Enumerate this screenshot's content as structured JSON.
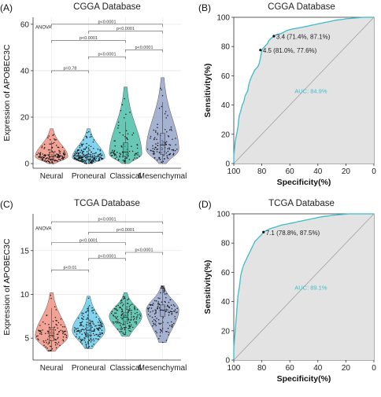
{
  "chart_data": [
    {
      "panel": "(A)",
      "type": "violin",
      "title": "CGGA Database",
      "ylabel": "Expression of APOBEC3C",
      "xlabel": "",
      "categories": [
        "Neural",
        "Proneural",
        "Classical",
        "Mesenchymal"
      ],
      "colors": [
        "#f08878",
        "#5cc8e8",
        "#3cbaa0",
        "#8c9cc4"
      ],
      "ylim": [
        -2,
        63
      ],
      "yticks": [
        0,
        20,
        40,
        60
      ],
      "grid": true,
      "test_label": "ANOVA",
      "medians": [
        3,
        3,
        5,
        8
      ],
      "q1": [
        2,
        2,
        3,
        4
      ],
      "q3": [
        5,
        4,
        9,
        13
      ],
      "y_min": [
        0,
        0,
        0,
        0
      ],
      "y_max": [
        15,
        15,
        33,
        37
      ],
      "mode": [
        3,
        2.5,
        4,
        6
      ],
      "points_per_group": [
        150,
        210,
        90,
        110
      ],
      "comparisons": [
        {
          "a": 0,
          "b": 1,
          "label": "p=0.78",
          "y": 40
        },
        {
          "a": 1,
          "b": 2,
          "label": "p<0.0001",
          "y": 46
        },
        {
          "a": 2,
          "b": 3,
          "label": "p<0.0001",
          "y": 49
        },
        {
          "a": 0,
          "b": 2,
          "label": "p<0.0001",
          "y": 53
        },
        {
          "a": 1,
          "b": 3,
          "label": "p<0.0001",
          "y": 57
        },
        {
          "a": 0,
          "b": 3,
          "label": "p<0.0001",
          "y": 60
        }
      ]
    },
    {
      "panel": "(B)",
      "type": "line",
      "title": "CGGA Database",
      "xlabel": "Specificity(%)",
      "ylabel": "Sensitivity(%)",
      "xlim": [
        100,
        0
      ],
      "ylim": [
        0,
        100
      ],
      "xticks": [
        100,
        80,
        60,
        40,
        20,
        0
      ],
      "yticks": [
        0,
        20,
        40,
        60,
        80,
        100
      ],
      "auc_label": "AUC: 84.9%",
      "curve_color": "#3bbccc",
      "roc_specificity": [
        100,
        100,
        99.5,
        99,
        98,
        97,
        96.5,
        96,
        95,
        94.5,
        94,
        93,
        92.5,
        92,
        91,
        90,
        89.5,
        89,
        88,
        87,
        86,
        85.5,
        85,
        84,
        83,
        82,
        81,
        80,
        79,
        78,
        77,
        76,
        75,
        74,
        73,
        72,
        71.4,
        70,
        68,
        66,
        64,
        62,
        60,
        58,
        55,
        52,
        50,
        47,
        45,
        42,
        40,
        37,
        35,
        32,
        30,
        27,
        25,
        22,
        20,
        17,
        15,
        12,
        10,
        7,
        5,
        2,
        0
      ],
      "roc_sensitivity": [
        0,
        5,
        10,
        15,
        20,
        25,
        30,
        33,
        36,
        38,
        40,
        42,
        44,
        46,
        48,
        50,
        53,
        55,
        58,
        60,
        62,
        63,
        64,
        65,
        66,
        68,
        72,
        77.6,
        79,
        80,
        81,
        82,
        84,
        85,
        86,
        86.5,
        87.1,
        88,
        88.5,
        89,
        90,
        91,
        91.5,
        92,
        92.5,
        93,
        93.5,
        94,
        94.5,
        95,
        95.5,
        96,
        96.5,
        97,
        97.5,
        98,
        98.3,
        98.6,
        99,
        99.2,
        99.4,
        99.6,
        99.8,
        100,
        100,
        100,
        100
      ],
      "thresholds": [
        {
          "specificity": 71.4,
          "sensitivity": 87.1,
          "label": "3.4 (71.4%, 87.1%)"
        },
        {
          "specificity": 81.0,
          "sensitivity": 77.6,
          "label": "4.5 (81.0%, 77.6%)"
        }
      ]
    },
    {
      "panel": "(C)",
      "type": "violin",
      "title": "TCGA Database",
      "ylabel": "Expression of APOBEC3C",
      "xlabel": "",
      "categories": [
        "Neural",
        "Proneural",
        "Classical",
        "Mesenchymal"
      ],
      "colors": [
        "#f08878",
        "#5cc8e8",
        "#3cbaa0",
        "#8c9cc4"
      ],
      "ylim": [
        2.5,
        19.2
      ],
      "yticks": [
        5,
        10,
        15
      ],
      "grid": true,
      "test_label": "ANOVA",
      "medians": [
        5.3,
        5.9,
        7.4,
        8.2
      ],
      "q1": [
        4.7,
        5.3,
        6.9,
        7.5
      ],
      "q3": [
        6.2,
        6.5,
        7.9,
        8.8
      ],
      "y_min": [
        3.5,
        3.8,
        5.2,
        4.5
      ],
      "y_max": [
        10.2,
        9.8,
        10.2,
        11.0
      ],
      "mode": [
        5.2,
        5.9,
        7.5,
        8.2
      ],
      "points_per_group": [
        110,
        180,
        140,
        140
      ],
      "comparisons": [
        {
          "a": 0,
          "b": 1,
          "label": "p<0.01",
          "y": 12.8
        },
        {
          "a": 1,
          "b": 2,
          "label": "p<0.0001",
          "y": 14.1
        },
        {
          "a": 2,
          "b": 3,
          "label": "p<0.0001",
          "y": 14.8
        },
        {
          "a": 0,
          "b": 2,
          "label": "p<0.0001",
          "y": 15.9
        },
        {
          "a": 1,
          "b": 3,
          "label": "p<0.0001",
          "y": 17.1
        },
        {
          "a": 0,
          "b": 3,
          "label": "p<0.0001",
          "y": 18.3
        }
      ]
    },
    {
      "panel": "(D)",
      "type": "line",
      "title": "TCGA Database",
      "xlabel": "Specificity(%)",
      "ylabel": "Sensitivity(%)",
      "xlim": [
        100,
        0
      ],
      "ylim": [
        0,
        100
      ],
      "xticks": [
        100,
        80,
        60,
        40,
        20,
        0
      ],
      "yticks": [
        0,
        20,
        40,
        60,
        80,
        100
      ],
      "auc_label": "AUC: 89.1%",
      "curve_color": "#3bbccc",
      "roc_specificity": [
        100,
        100,
        99.5,
        99,
        98.5,
        98,
        97.5,
        97,
        96,
        95.5,
        95,
        94,
        93,
        92,
        91,
        90,
        89,
        88,
        87,
        86,
        85,
        84,
        83,
        82,
        81,
        80,
        79,
        78.8,
        77,
        75,
        72,
        70,
        67,
        65,
        62,
        60,
        57,
        55,
        52,
        50,
        47,
        45,
        42,
        40,
        37,
        35,
        32,
        30,
        27,
        25,
        22,
        20,
        17,
        15,
        12,
        10,
        7,
        5,
        2,
        0
      ],
      "roc_sensitivity": [
        0,
        8,
        14,
        20,
        26,
        32,
        38,
        44,
        50,
        54,
        58,
        62,
        65,
        67,
        69,
        71,
        73,
        75,
        77,
        79,
        81,
        82,
        83,
        84,
        85,
        86,
        87,
        87.5,
        88.5,
        89.5,
        90.5,
        91,
        92,
        92.5,
        93,
        93.5,
        94,
        94.5,
        95,
        95.5,
        96,
        96.5,
        97,
        97.5,
        98,
        98.3,
        98.6,
        99,
        99.2,
        99.4,
        99.6,
        99.8,
        100,
        100,
        100,
        100,
        100,
        100,
        100,
        100
      ],
      "thresholds": [
        {
          "specificity": 78.8,
          "sensitivity": 87.5,
          "label": "7.1 (78.8%, 87.5%)"
        }
      ]
    }
  ]
}
